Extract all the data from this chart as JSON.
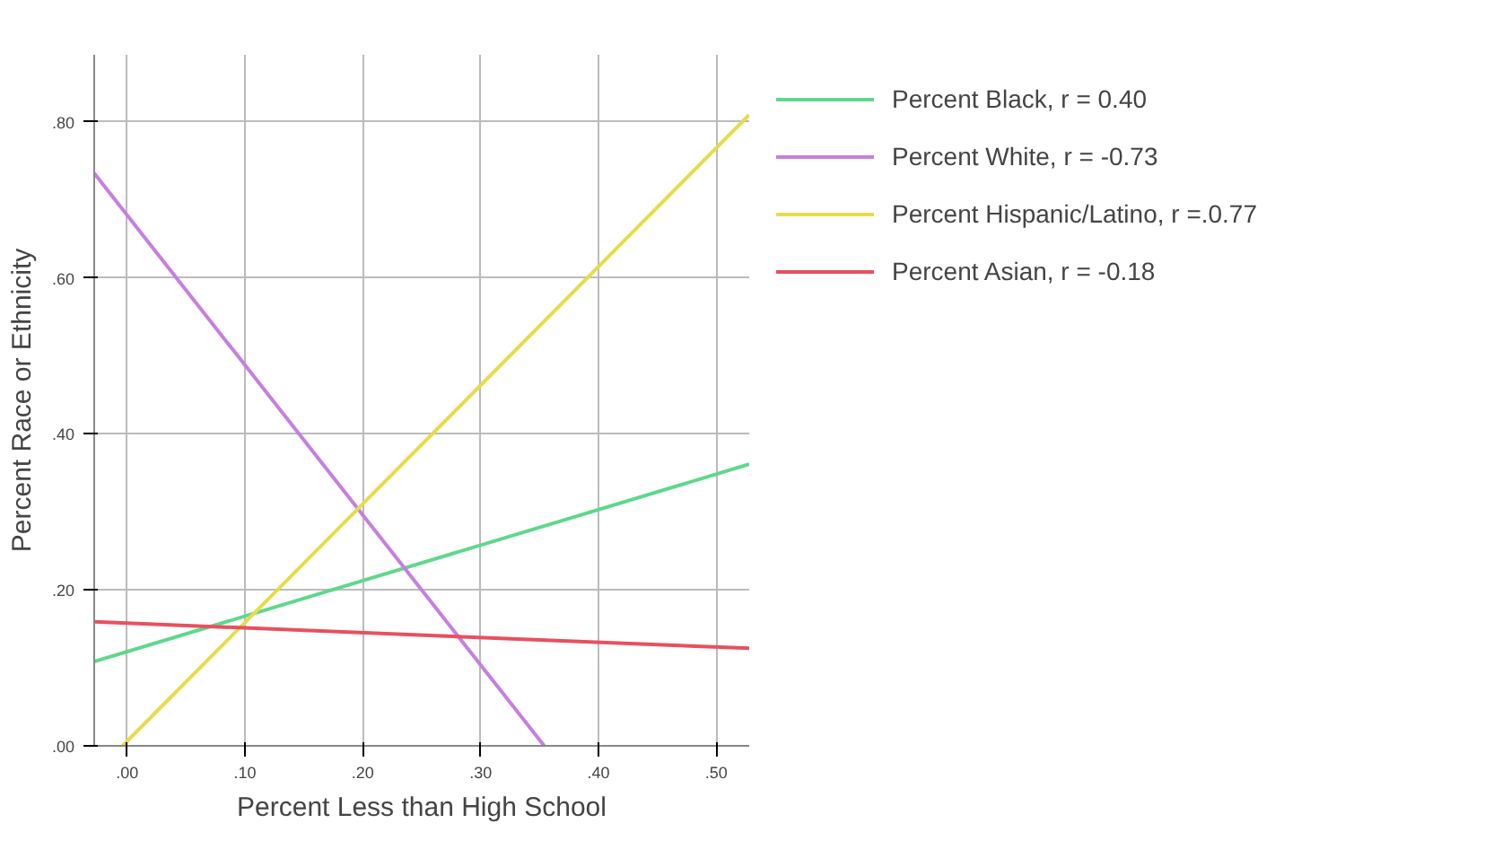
{
  "chart_data": {
    "type": "line",
    "xlabel": "Percent Less than High School",
    "ylabel": "Percent Race or Ethnicity",
    "xlim": [
      -0.028,
      0.528
    ],
    "ylim": [
      0,
      0.886
    ],
    "xticks": [
      {
        "value": 0,
        "label": ".00"
      },
      {
        "value": 0.1,
        "label": ".10"
      },
      {
        "value": 0.2,
        "label": ".20"
      },
      {
        "value": 0.3,
        "label": ".30"
      },
      {
        "value": 0.4,
        "label": ".40"
      },
      {
        "value": 0.5,
        "label": ".50"
      }
    ],
    "yticks": [
      {
        "value": 0,
        "label": ".00"
      },
      {
        "value": 0.2,
        "label": ".20"
      },
      {
        "value": 0.4,
        "label": ".40"
      },
      {
        "value": 0.6,
        "label": ".60"
      },
      {
        "value": 0.8,
        "label": ".80"
      }
    ],
    "grid": true,
    "legend": "right",
    "marker": "none",
    "line_style": "solid",
    "series": [
      {
        "name": "Percent Black, r = 0.40",
        "color": "#5ed88a",
        "x": [
          -0.028,
          0.528
        ],
        "values": [
          0.108,
          0.361
        ]
      },
      {
        "name": "Percent White, r = -0.73",
        "color": "#c77ee0",
        "x": [
          -0.028,
          0.354
        ],
        "values": [
          0.734,
          0
        ]
      },
      {
        "name": "Percent Hispanic/Latino, r =.0.77",
        "color": "#e6dc4a",
        "x": [
          -0.004,
          0.528
        ],
        "values": [
          0,
          0.809
        ]
      },
      {
        "name": "Percent Asian, r = -0.18",
        "color": "#e8505f",
        "x": [
          -0.028,
          0.528
        ],
        "values": [
          0.159,
          0.125
        ]
      }
    ]
  }
}
